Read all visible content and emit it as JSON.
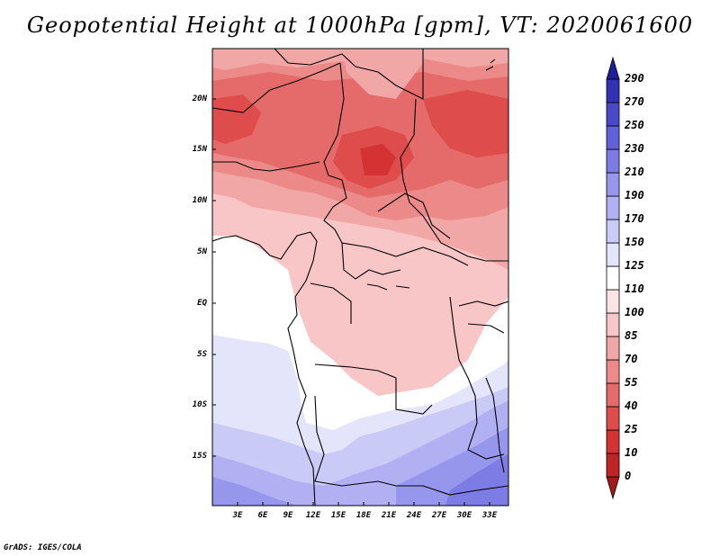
{
  "title": "Geopotential Height at 1000hPa [gpm], VT: 2020061600",
  "footer": "GrADS: IGES/COLA",
  "map": {
    "lat_labels": [
      "20N",
      "15N",
      "10N",
      "5N",
      "EQ",
      "5S",
      "10S",
      "15S"
    ],
    "lon_labels": [
      "3E",
      "6E",
      "9E",
      "12E",
      "15E",
      "18E",
      "21E",
      "24E",
      "27E",
      "30E",
      "33E"
    ]
  },
  "colorbar": {
    "levels": [
      "0",
      "10",
      "25",
      "40",
      "55",
      "70",
      "85",
      "100",
      "110",
      "125",
      "150",
      "170",
      "190",
      "210",
      "230",
      "250",
      "270",
      "290"
    ],
    "colors": [
      "#a11a1a",
      "#c02424",
      "#d53333",
      "#de4c4c",
      "#e56b6b",
      "#ec8a8a",
      "#f2a7a7",
      "#f8c6c6",
      "#fde4e4",
      "#ffffff",
      "#e4e4fa",
      "#cacaf6",
      "#b0b0f2",
      "#9696ec",
      "#7c7ce4",
      "#6262d8",
      "#4a4ac8",
      "#3232b4",
      "#1e1e9a"
    ]
  },
  "chart_data": {
    "type": "heatmap",
    "title": "Geopotential Height at 1000hPa [gpm], VT: 2020061600",
    "x_ticks": [
      "3E",
      "6E",
      "9E",
      "12E",
      "15E",
      "18E",
      "21E",
      "24E",
      "27E",
      "30E",
      "33E"
    ],
    "y_ticks": [
      "20N",
      "15N",
      "10N",
      "5N",
      "EQ",
      "5S",
      "10S",
      "15S"
    ],
    "xlim": [
      0,
      35
    ],
    "ylim": [
      -20,
      24.5
    ],
    "colorbar_levels": [
      0,
      10,
      25,
      40,
      55,
      70,
      85,
      100,
      110,
      125,
      150,
      170,
      190,
      210,
      230,
      250,
      270,
      290
    ],
    "units": "gpm"
  }
}
